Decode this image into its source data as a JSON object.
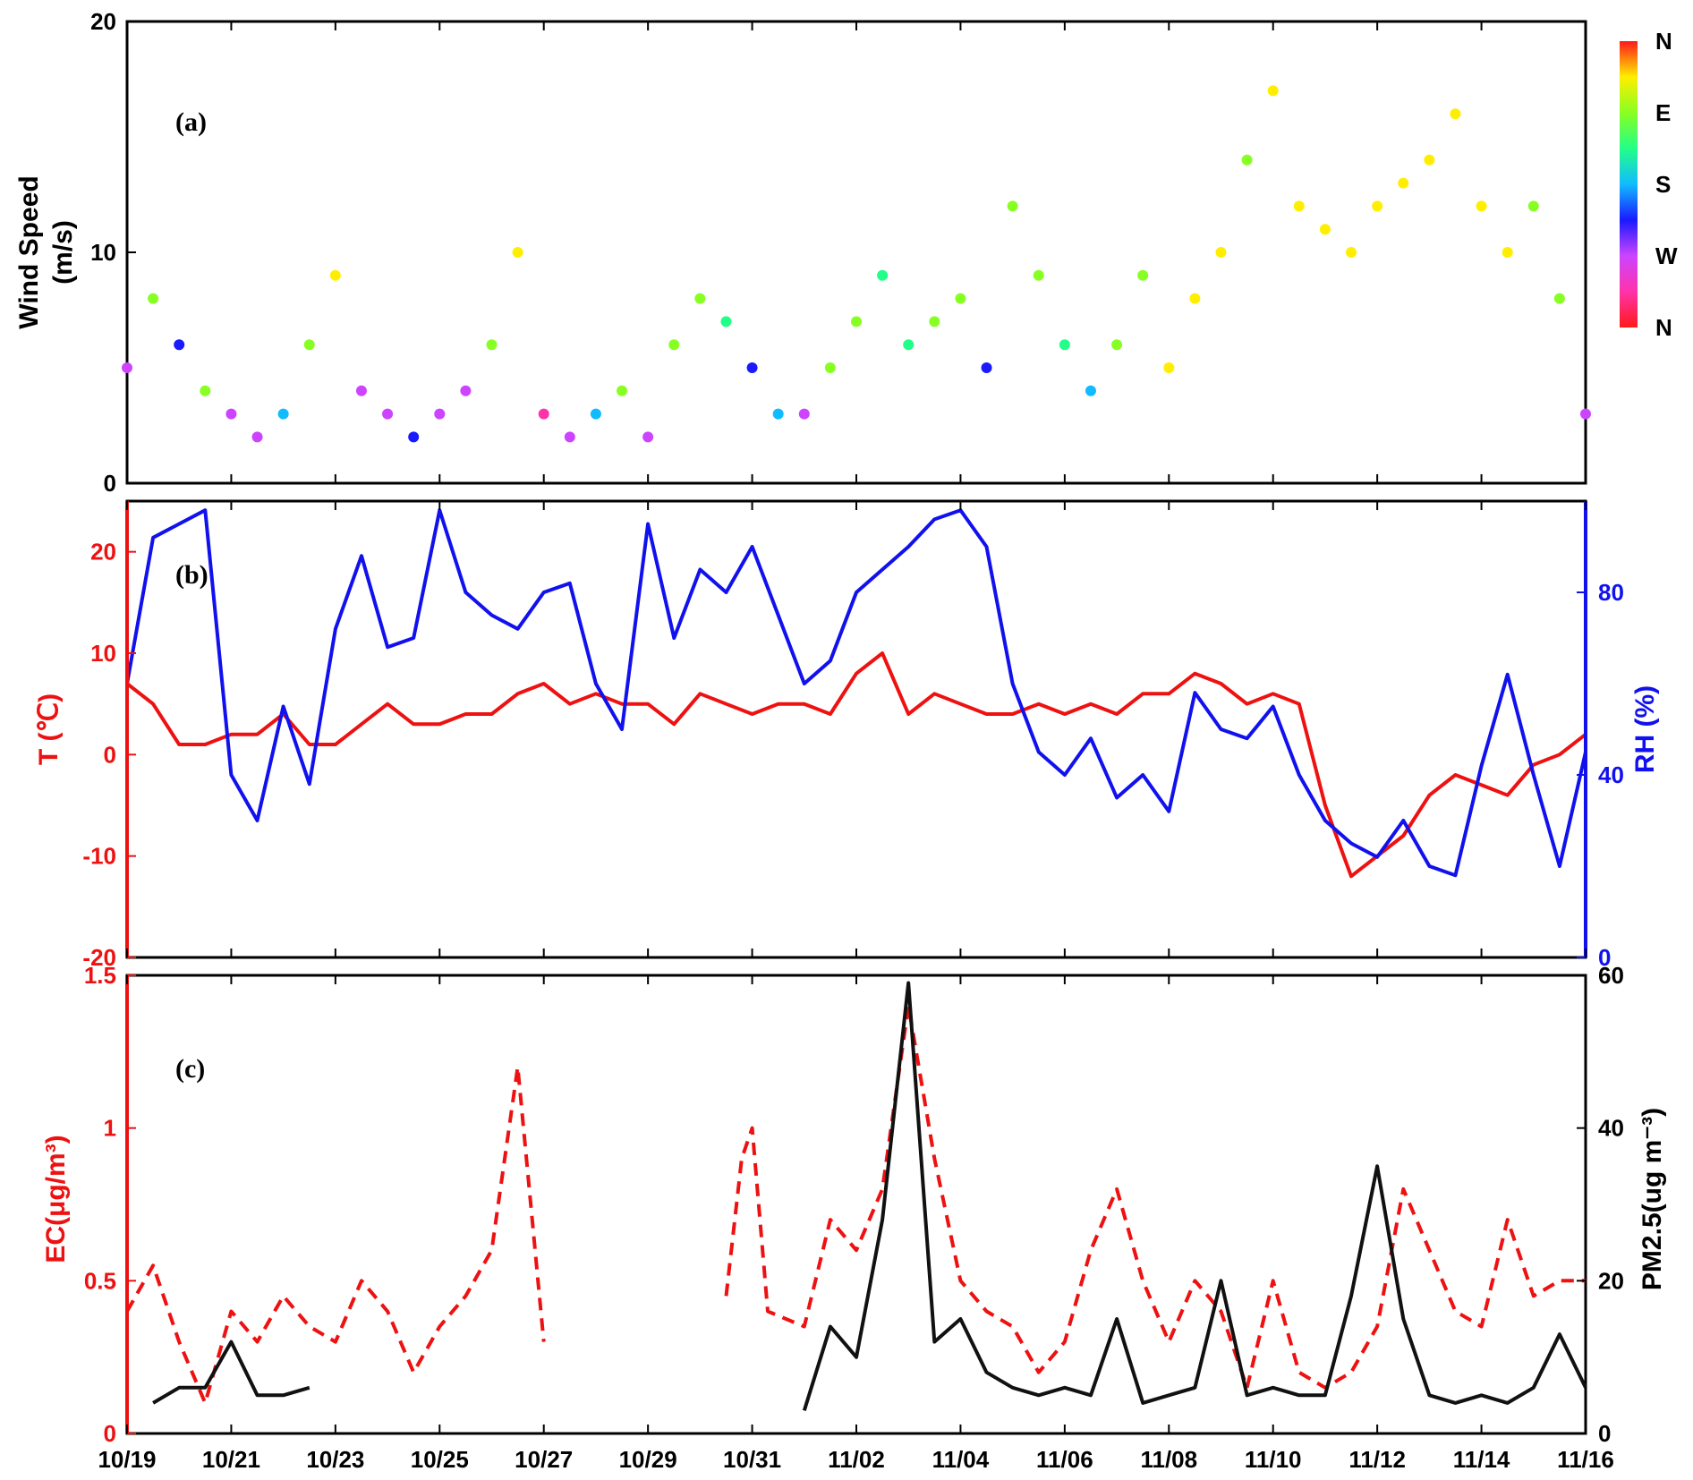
{
  "chart_data": [
    {
      "type": "scatter",
      "panel_label": "(a)",
      "ylabel_line1": "Wind Speed",
      "ylabel_line2": "(m/s)",
      "ylim": [
        0,
        20
      ],
      "yticks": [
        "0",
        "10",
        "20"
      ],
      "colorbar": {
        "labels": [
          "N",
          "W",
          "S",
          "E",
          "N"
        ],
        "colors": [
          "#ff1a1a",
          "#ff33aa",
          "#cc44ff",
          "#1a1aff",
          "#11bbff",
          "#22ff88",
          "#88ff22",
          "#ffee00",
          "#ff1a1a"
        ]
      },
      "series": [
        {
          "x": [
            0.0,
            0.5,
            1.0,
            1.5,
            2.0,
            2.5,
            3.0,
            3.5,
            4.0,
            4.5,
            5.0,
            5.5,
            6.0,
            6.5,
            7.0,
            7.5,
            8.0,
            8.5,
            9.0,
            9.5,
            10.0,
            10.5,
            11.0,
            11.5,
            12.0,
            12.5,
            13.0,
            13.5,
            14.0,
            14.5,
            15.0,
            15.5,
            16.0,
            16.5,
            17.0,
            17.5,
            18.0,
            18.5,
            19.0,
            19.5,
            20.0,
            20.5,
            21.0,
            21.5,
            22.0,
            22.5,
            23.0,
            23.5,
            24.0,
            24.5,
            25.0,
            25.5,
            26.0,
            26.5,
            27.0,
            27.5,
            28.0
          ],
          "wind_speed": [
            5,
            8,
            6,
            4,
            3,
            2,
            3,
            6,
            9,
            4,
            3,
            2,
            3,
            4,
            6,
            10,
            3,
            2,
            3,
            4,
            2,
            6,
            8,
            7,
            5,
            3,
            3,
            5,
            7,
            9,
            6,
            7,
            8,
            5,
            12,
            9,
            6,
            4,
            6,
            9,
            5,
            8,
            10,
            14,
            17,
            12,
            11,
            10,
            12,
            13,
            14,
            16,
            12,
            10,
            12,
            8,
            3
          ],
          "direction_deg": [
            100,
            250,
            120,
            280,
            90,
            80,
            200,
            260,
            300,
            100,
            90,
            150,
            70,
            80,
            250,
            300,
            60,
            80,
            200,
            260,
            90,
            260,
            270,
            230,
            130,
            180,
            90,
            250,
            270,
            240,
            210,
            250,
            250,
            150,
            280,
            260,
            230,
            160,
            250,
            260,
            300,
            300,
            300,
            290,
            310,
            300,
            300,
            300,
            300,
            300,
            300,
            310,
            300,
            300,
            290,
            260,
            100
          ]
        }
      ]
    },
    {
      "type": "line",
      "panel_label": "(b)",
      "ylabel_left": "T (℃)",
      "ylabel_right": "RH (%)",
      "ylim_left": [
        -20,
        25
      ],
      "ylim_right": [
        0,
        100
      ],
      "yticks_left": [
        "-20",
        "-10",
        "0",
        "10",
        "20"
      ],
      "yticks_right": [
        "0",
        "40",
        "80"
      ],
      "series": [
        {
          "name": "T",
          "color": "#ee1111",
          "axis": "left",
          "x": [
            0.0,
            0.5,
            1.0,
            1.5,
            2.0,
            2.5,
            3.0,
            3.5,
            4.0,
            4.5,
            5.0,
            5.5,
            6.0,
            6.5,
            7.0,
            7.5,
            8.0,
            8.5,
            9.0,
            9.5,
            10.0,
            10.5,
            11.0,
            11.5,
            12.0,
            12.5,
            13.0,
            13.5,
            14.0,
            14.5,
            15.0,
            15.5,
            16.0,
            16.5,
            17.0,
            17.5,
            18.0,
            18.5,
            19.0,
            19.5,
            20.0,
            20.5,
            21.0,
            21.5,
            22.0,
            22.5,
            23.0,
            23.5,
            24.0,
            24.5,
            25.0,
            25.5,
            26.0,
            26.5,
            27.0,
            27.5,
            28.0
          ],
          "values": [
            7,
            5,
            1,
            1,
            2,
            2,
            4,
            1,
            1,
            3,
            5,
            3,
            3,
            4,
            4,
            6,
            7,
            5,
            6,
            5,
            5,
            3,
            6,
            5,
            4,
            5,
            5,
            4,
            8,
            10,
            4,
            6,
            5,
            4,
            4,
            5,
            4,
            5,
            4,
            6,
            6,
            8,
            7,
            5,
            6,
            5,
            -5,
            -12,
            -10,
            -8,
            -4,
            -2,
            -3,
            -4,
            -1,
            0,
            2
          ]
        },
        {
          "name": "RH",
          "color": "#1111ee",
          "axis": "right",
          "x": [
            0.0,
            0.5,
            1.0,
            1.5,
            2.0,
            2.5,
            3.0,
            3.5,
            4.0,
            4.5,
            5.0,
            5.5,
            6.0,
            6.5,
            7.0,
            7.5,
            8.0,
            8.5,
            9.0,
            9.5,
            10.0,
            10.5,
            11.0,
            11.5,
            12.0,
            12.5,
            13.0,
            13.5,
            14.0,
            14.5,
            15.0,
            15.5,
            16.0,
            16.5,
            17.0,
            17.5,
            18.0,
            18.5,
            19.0,
            19.5,
            20.0,
            20.5,
            21.0,
            21.5,
            22.0,
            22.5,
            23.0,
            23.5,
            24.0,
            24.5,
            25.0,
            25.5,
            26.0,
            26.5,
            27.0,
            27.5,
            28.0
          ],
          "values": [
            60,
            92,
            95,
            98,
            40,
            30,
            55,
            38,
            72,
            88,
            68,
            70,
            98,
            80,
            75,
            72,
            80,
            82,
            60,
            50,
            95,
            70,
            85,
            80,
            90,
            75,
            60,
            65,
            80,
            85,
            90,
            96,
            98,
            90,
            60,
            45,
            40,
            48,
            35,
            40,
            32,
            58,
            50,
            48,
            55,
            40,
            30,
            25,
            22,
            30,
            20,
            18,
            42,
            62,
            40,
            20,
            45
          ]
        }
      ]
    },
    {
      "type": "line",
      "panel_label": "(c)",
      "ylabel_left": "EC(μg/m³)",
      "ylabel_right": "PM2.5(ug m⁻³)",
      "ylim_left": [
        0,
        1.5
      ],
      "ylim_right": [
        0,
        60
      ],
      "yticks_left": [
        "0",
        "0.5",
        "1",
        "1.5"
      ],
      "yticks_right": [
        "0",
        "20",
        "40",
        "60"
      ],
      "xlim_days": [
        0,
        28
      ],
      "xticks": [
        "10/19",
        "10/21",
        "10/23",
        "10/25",
        "10/27",
        "10/29",
        "10/31",
        "11/02",
        "11/04",
        "11/06",
        "11/08",
        "11/10",
        "11/12",
        "11/14",
        "11/16"
      ],
      "series": [
        {
          "name": "EC",
          "color": "#ee1111",
          "axis": "left",
          "dashed": true,
          "x": [
            0.0,
            0.5,
            1.0,
            1.5,
            2.0,
            2.5,
            3.0,
            3.5,
            4.0,
            4.5,
            5.0,
            5.5,
            6.0,
            6.5,
            7.0,
            7.5,
            8.0,
            11.5,
            11.8,
            12.0,
            12.3,
            13.0,
            13.5,
            14.0,
            14.5,
            15.0,
            15.5,
            16.0,
            16.5,
            17.0,
            17.5,
            18.0,
            18.5,
            19.0,
            19.5,
            20.0,
            20.5,
            21.0,
            21.5,
            22.0,
            22.5,
            23.0,
            23.5,
            24.0,
            24.5,
            25.0,
            25.5,
            26.0,
            26.5,
            27.0,
            27.5,
            28.0
          ],
          "values": [
            0.4,
            0.55,
            0.3,
            0.1,
            0.4,
            0.3,
            0.45,
            0.35,
            0.3,
            0.5,
            0.4,
            0.2,
            0.35,
            0.45,
            0.6,
            1.2,
            0.3,
            0.45,
            0.9,
            1.0,
            0.4,
            0.35,
            0.7,
            0.6,
            0.8,
            1.4,
            0.9,
            0.5,
            0.4,
            0.35,
            0.2,
            0.3,
            0.6,
            0.8,
            0.5,
            0.3,
            0.5,
            0.4,
            0.15,
            0.5,
            0.2,
            0.15,
            0.2,
            0.35,
            0.8,
            0.6,
            0.4,
            0.35,
            0.7,
            0.45,
            0.5,
            0.5
          ]
        },
        {
          "name": "PM2.5",
          "color": "#111111",
          "axis": "right",
          "dashed": false,
          "x": [
            0.5,
            1.0,
            1.5,
            2.0,
            2.5,
            3.0,
            3.5,
            13.0,
            13.5,
            14.0,
            14.5,
            15.0,
            15.5,
            16.0,
            16.5,
            17.0,
            17.5,
            18.0,
            18.5,
            19.0,
            19.5,
            20.0,
            20.5,
            21.0,
            21.5,
            22.0,
            22.5,
            23.0,
            23.5,
            24.0,
            24.5,
            25.0,
            25.5,
            26.0,
            26.5,
            27.0,
            27.5,
            28.0
          ],
          "values": [
            4,
            6,
            6,
            12,
            5,
            5,
            6,
            3,
            14,
            10,
            28,
            59,
            12,
            15,
            8,
            6,
            5,
            6,
            5,
            15,
            4,
            5,
            6,
            20,
            5,
            6,
            5,
            5,
            18,
            35,
            15,
            5,
            4,
            5,
            4,
            6,
            13,
            6
          ]
        }
      ]
    }
  ]
}
